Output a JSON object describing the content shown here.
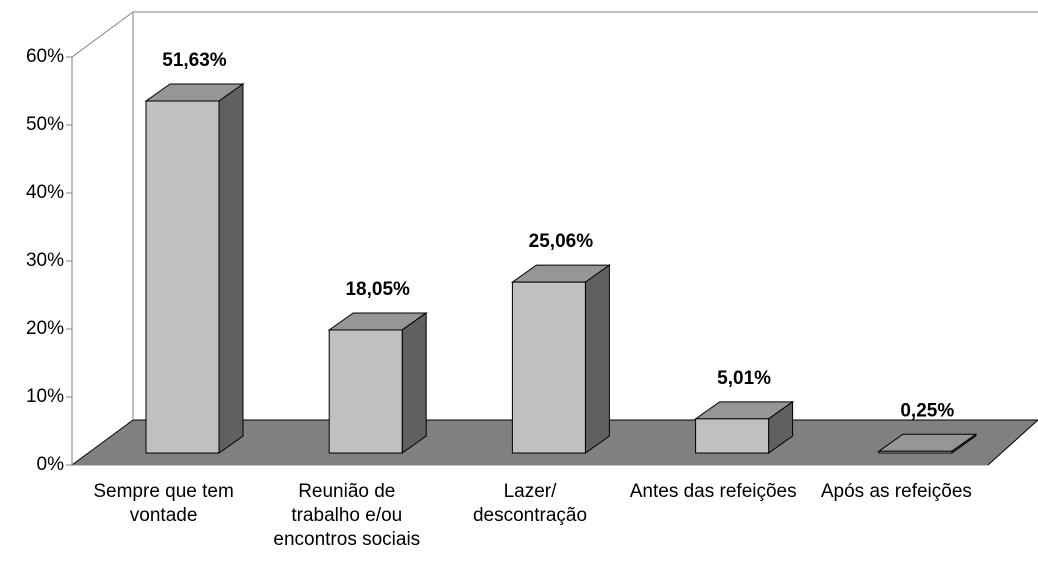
{
  "chart_data": {
    "type": "bar3d",
    "categories": [
      "Sempre que tem vontade",
      "Reunião de trabalho e/ou encontros sociais",
      "Lazer/ descontração",
      "Antes das refeições",
      "Após as refeições"
    ],
    "values": [
      51.63,
      18.05,
      25.06,
      5.01,
      0.25
    ],
    "value_labels": [
      "51,63%",
      "18,05%",
      "25,06%",
      "5,01%",
      "0,25%"
    ],
    "color": "#c0c0c0",
    "ylim": [
      0,
      60
    ],
    "yticks": [
      {
        "value": 0,
        "label": "0%"
      },
      {
        "value": 10,
        "label": "10%"
      },
      {
        "value": 20,
        "label": "20%"
      },
      {
        "value": 30,
        "label": "30%"
      },
      {
        "value": 40,
        "label": "40%"
      },
      {
        "value": 50,
        "label": "50%"
      },
      {
        "value": 60,
        "label": "60%"
      }
    ]
  }
}
